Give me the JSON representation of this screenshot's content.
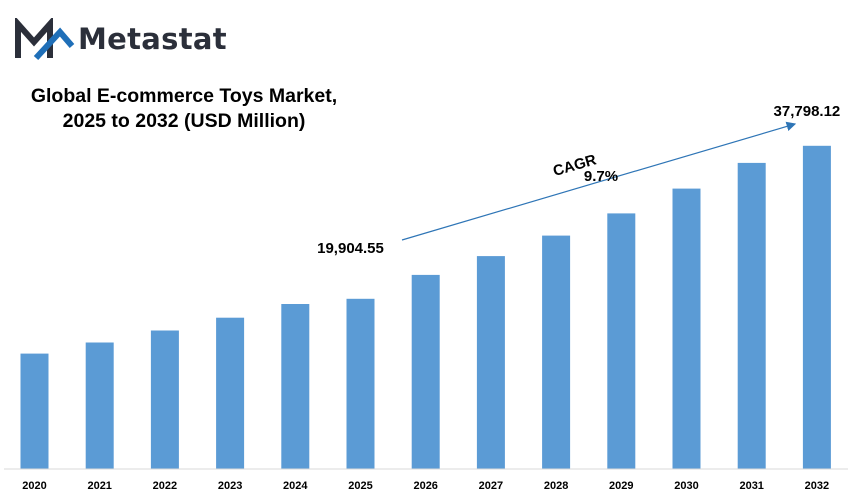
{
  "brand": {
    "name": "Metastat",
    "colors": {
      "dark": "#2b2f3a",
      "blue": "#1f6fb8",
      "bar": "#5b9bd5"
    }
  },
  "chart_data": {
    "type": "bar",
    "title": [
      "Global E-commerce Toys Market,",
      "2025 to 2032 (USD Million)"
    ],
    "categories": [
      "2020",
      "2021",
      "2022",
      "2023",
      "2024",
      "2025",
      "2026",
      "2027",
      "2028",
      "2029",
      "2030",
      "2031",
      "2032"
    ],
    "values": [
      13500,
      14800,
      16200,
      17700,
      19300,
      19904.55,
      22700,
      24900,
      27300,
      29900,
      32800,
      35800,
      37798.12
    ],
    "ylim": [
      0,
      40000
    ],
    "grid": false,
    "legend": "none",
    "data_labels": {
      "2025": "19,904.55",
      "2032": "37,798.12"
    },
    "annotations": {
      "cagr_label": "CAGR",
      "cagr_value": "9.7%"
    },
    "bar_color": "#5b9bd5"
  }
}
